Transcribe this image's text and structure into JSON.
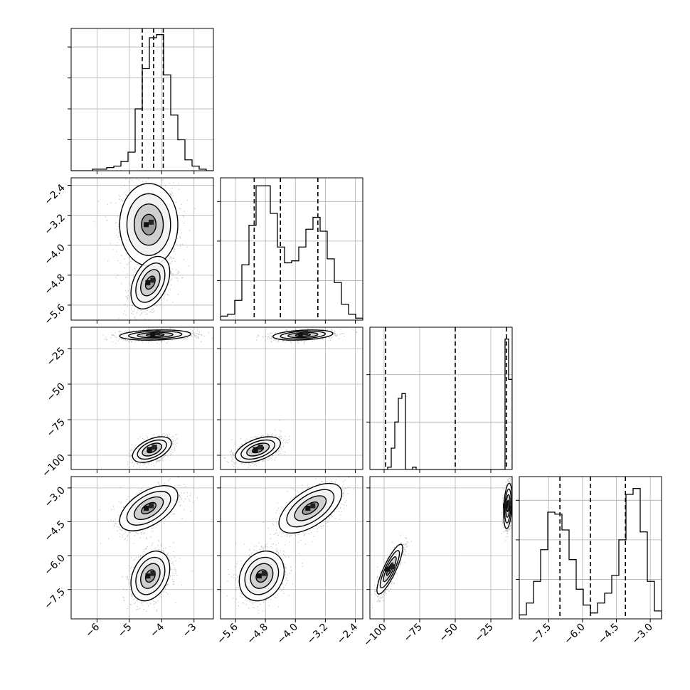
{
  "chart_data": {
    "type": "scatter",
    "title": "",
    "layout": "corner-plot",
    "dimensions": 4,
    "grid": true,
    "colors": {
      "line": "#000000",
      "grid": "#b0b0b0",
      "points": "#555555"
    },
    "variables": [
      {
        "range": [
          -6.8,
          -2.4
        ],
        "ticks": [
          {
            "v": -6,
            "label": "−6"
          },
          {
            "v": -5,
            "label": "−5"
          },
          {
            "v": -4,
            "label": "−4"
          },
          {
            "v": -3,
            "label": "−3"
          }
        ],
        "quantiles": [
          -4.6,
          -4.25,
          -3.95
        ],
        "histogram": {
          "edges_range": [
            -6.8,
            -2.4
          ],
          "counts": [
            0,
            0,
            0,
            1,
            1,
            2,
            3,
            6,
            12,
            40,
            66,
            86,
            88,
            62,
            36,
            20,
            7,
            3,
            1,
            0
          ],
          "ymax": 92
        }
      },
      {
        "range": [
          -6.0,
          -2.2
        ],
        "ticks": [
          {
            "v": -5.6,
            "label": "−5.6"
          },
          {
            "v": -4.8,
            "label": "−4.8"
          },
          {
            "v": -4.0,
            "label": "−4.0"
          },
          {
            "v": -3.2,
            "label": "−3.2"
          },
          {
            "v": -2.4,
            "label": "−2.4"
          }
        ],
        "quantiles": [
          -5.1,
          -4.4,
          -3.4
        ],
        "histogram": {
          "edges_range": [
            -6.0,
            -2.2
          ],
          "counts": [
            2,
            3,
            10,
            28,
            48,
            68,
            68,
            54,
            37,
            29,
            30,
            37,
            46,
            52,
            45,
            31,
            19,
            8,
            3,
            1
          ],
          "ymax": 72
        }
      },
      {
        "range": [
          -110,
          -10
        ],
        "ticks": [
          {
            "v": -100,
            "label": "−100"
          },
          {
            "v": -75,
            "label": "−75"
          },
          {
            "v": -50,
            "label": "−50"
          },
          {
            "v": -25,
            "label": "−25"
          }
        ],
        "quantiles": [
          -99,
          -50,
          -14
        ],
        "histogram": {
          "edges_range": [
            -110,
            -10
          ],
          "counts": [
            0,
            0,
            0,
            0,
            0,
            1,
            9,
            20,
            30,
            32,
            0,
            0,
            1,
            0,
            0,
            0,
            0,
            0,
            0,
            0,
            0,
            0,
            0,
            0,
            0,
            0,
            0,
            0,
            0,
            0,
            0,
            0,
            0,
            0,
            0,
            0,
            0,
            0,
            55,
            38
          ],
          "ymax": 60
        }
      },
      {
        "range": [
          -8.8,
          -2.5
        ],
        "ticks": [
          {
            "v": -7.5,
            "label": "−7.5"
          },
          {
            "v": -6.0,
            "label": "−6.0"
          },
          {
            "v": -4.5,
            "label": "−4.5"
          },
          {
            "v": -3.0,
            "label": "−3.0"
          }
        ],
        "quantiles": [
          -7.0,
          -5.65,
          -4.1
        ],
        "histogram": {
          "edges_range": [
            -8.8,
            -2.5
          ],
          "counts": [
            2,
            8,
            19,
            35,
            54,
            53,
            45,
            30,
            15,
            7,
            3,
            8,
            13,
            22,
            40,
            63,
            66,
            44,
            19,
            4
          ],
          "ymax": 72
        }
      }
    ],
    "panels": [
      {
        "row": 1,
        "col": 0,
        "clusters": [
          {
            "cx": -4.4,
            "cy": -3.45,
            "sx": 0.45,
            "sy": 0.55,
            "rho": 0.0,
            "weight": 0.5
          },
          {
            "cx": -4.35,
            "cy": -5.0,
            "sx": 0.3,
            "sy": 0.35,
            "rho": 0.4,
            "weight": 0.5
          }
        ]
      },
      {
        "row": 2,
        "col": 0,
        "clusters": [
          {
            "cx": -4.2,
            "cy": -15.5,
            "sx": 0.55,
            "sy": 1.8,
            "rho": 0.2,
            "weight": 0.55
          },
          {
            "cx": -4.3,
            "cy": -96,
            "sx": 0.3,
            "sy": 4.5,
            "rho": 0.5,
            "weight": 0.45
          }
        ]
      },
      {
        "row": 2,
        "col": 1,
        "clusters": [
          {
            "cx": -3.8,
            "cy": -15.5,
            "sx": 0.4,
            "sy": 1.8,
            "rho": 0.3,
            "weight": 0.55
          },
          {
            "cx": -5.0,
            "cy": -96,
            "sx": 0.3,
            "sy": 4.5,
            "rho": 0.5,
            "weight": 0.45
          }
        ]
      },
      {
        "row": 3,
        "col": 0,
        "clusters": [
          {
            "cx": -4.4,
            "cy": -3.9,
            "sx": 0.45,
            "sy": 0.5,
            "rho": 0.55,
            "weight": 0.5
          },
          {
            "cx": -4.35,
            "cy": -6.9,
            "sx": 0.3,
            "sy": 0.55,
            "rho": 0.3,
            "weight": 0.5
          }
        ]
      },
      {
        "row": 3,
        "col": 1,
        "clusters": [
          {
            "cx": -3.6,
            "cy": -3.9,
            "sx": 0.42,
            "sy": 0.55,
            "rho": 0.6,
            "weight": 0.5
          },
          {
            "cx": -4.9,
            "cy": -6.9,
            "sx": 0.3,
            "sy": 0.55,
            "rho": 0.2,
            "weight": 0.5
          }
        ]
      },
      {
        "row": 3,
        "col": 2,
        "clusters": [
          {
            "cx": -13,
            "cy": -3.8,
            "sx": 1.5,
            "sy": 0.5,
            "rho": 0.3,
            "weight": 0.55
          },
          {
            "cx": -96,
            "cy": -6.6,
            "sx": 4.5,
            "sy": 0.55,
            "rho": 0.85,
            "weight": 0.45
          }
        ]
      }
    ]
  }
}
